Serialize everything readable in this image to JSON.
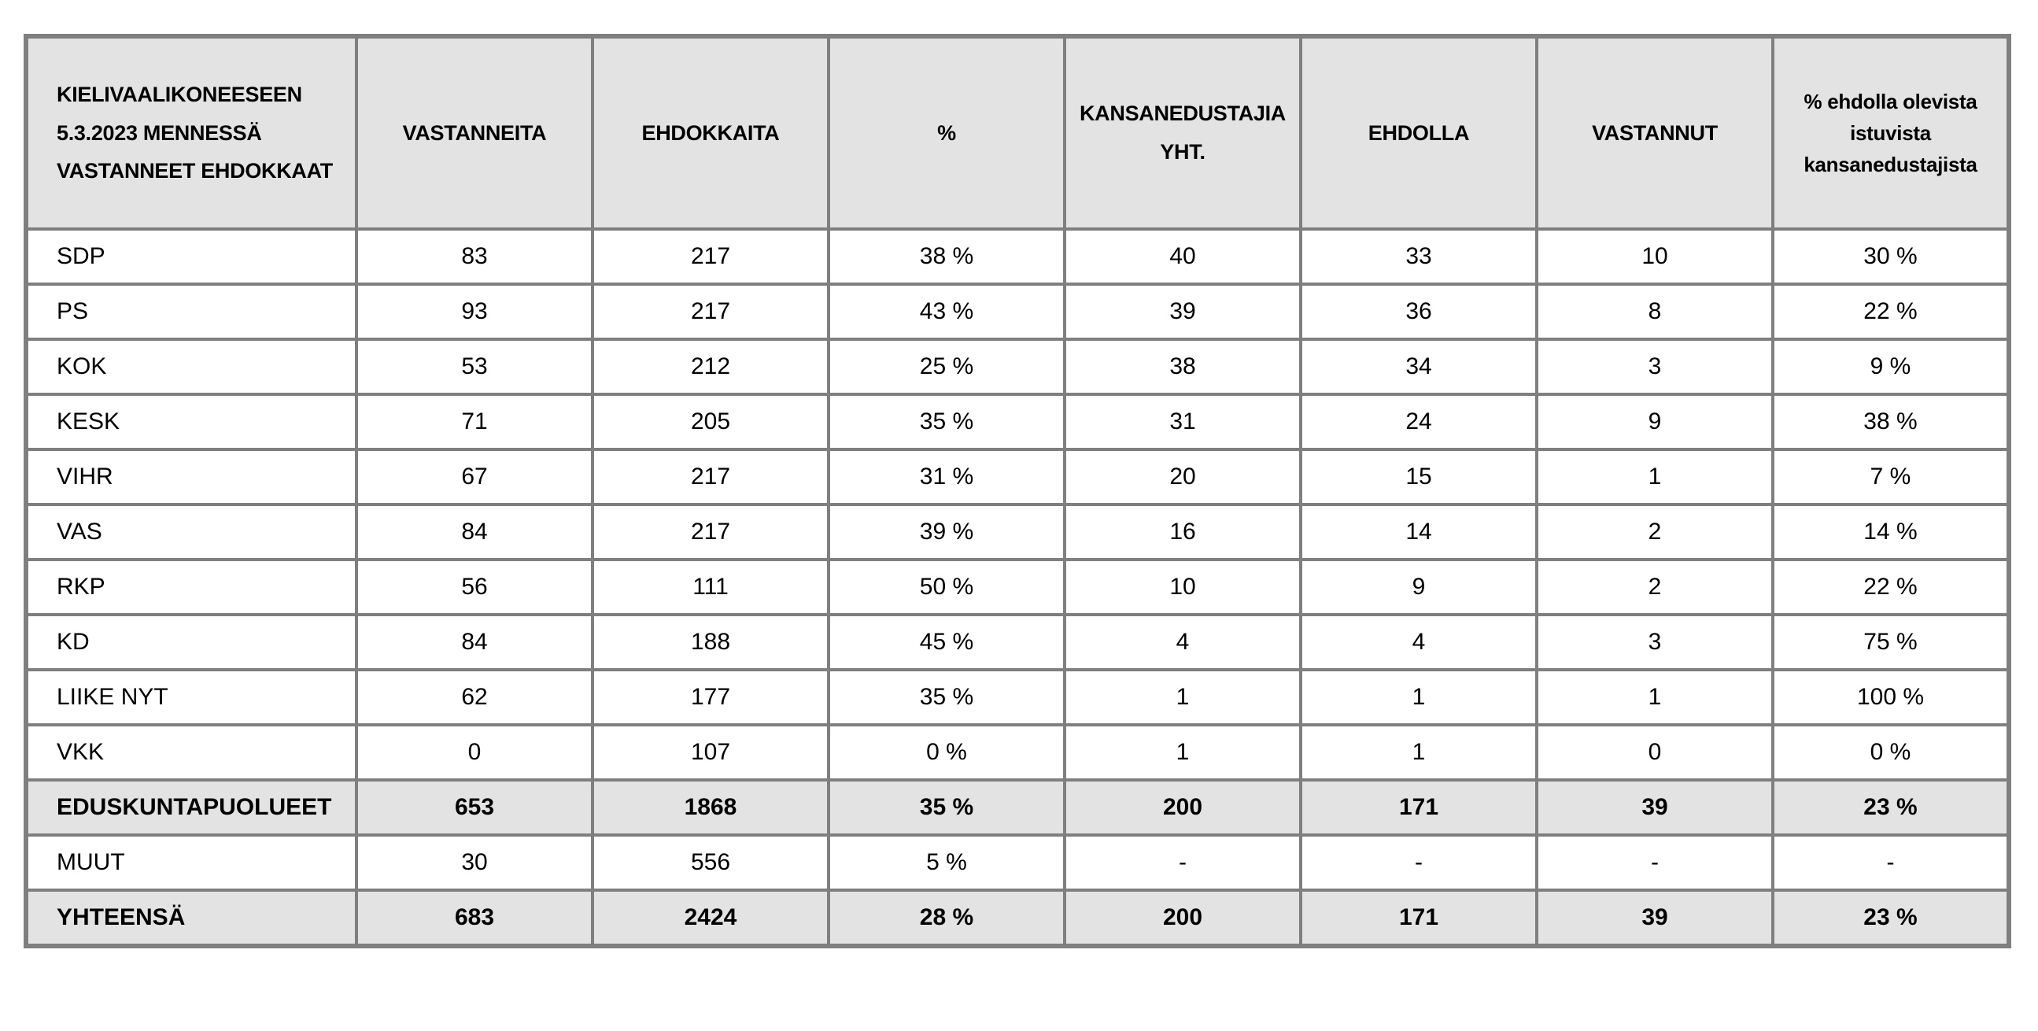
{
  "colors": {
    "border": "#7f7f7f",
    "header_bg": "#e3e3e3",
    "summary_bg": "#e3e3e3",
    "row_bg": "#ffffff",
    "text": "#000000"
  },
  "table": {
    "corner_header": "KIELIVAALIKONEESEEN\n5.3.2023 MENNESSÄ\nVASTANNEET EHDOKKAAT",
    "columns": [
      "VASTANNEITA",
      "EHDOKKAITA",
      "%",
      "KANSANEDUSTAJIA YHT.",
      "EHDOLLA",
      "VASTANNUT",
      "% ehdolla olevista istuvista kansanedustajista"
    ],
    "rows": [
      {
        "label": "SDP",
        "values": [
          "83",
          "217",
          "38 %",
          "40",
          "33",
          "10",
          "30 %"
        ],
        "emphasis": false
      },
      {
        "label": "PS",
        "values": [
          "93",
          "217",
          "43 %",
          "39",
          "36",
          "8",
          "22 %"
        ],
        "emphasis": false
      },
      {
        "label": "KOK",
        "values": [
          "53",
          "212",
          "25 %",
          "38",
          "34",
          "3",
          "9 %"
        ],
        "emphasis": false
      },
      {
        "label": "KESK",
        "values": [
          "71",
          "205",
          "35 %",
          "31",
          "24",
          "9",
          "38 %"
        ],
        "emphasis": false
      },
      {
        "label": "VIHR",
        "values": [
          "67",
          "217",
          "31 %",
          "20",
          "15",
          "1",
          "7 %"
        ],
        "emphasis": false
      },
      {
        "label": "VAS",
        "values": [
          "84",
          "217",
          "39 %",
          "16",
          "14",
          "2",
          "14 %"
        ],
        "emphasis": false
      },
      {
        "label": "RKP",
        "values": [
          "56",
          "111",
          "50 %",
          "10",
          "9",
          "2",
          "22 %"
        ],
        "emphasis": false
      },
      {
        "label": "KD",
        "values": [
          "84",
          "188",
          "45 %",
          "4",
          "4",
          "3",
          "75 %"
        ],
        "emphasis": false
      },
      {
        "label": "LIIKE NYT",
        "values": [
          "62",
          "177",
          "35 %",
          "1",
          "1",
          "1",
          "100 %"
        ],
        "emphasis": false
      },
      {
        "label": "VKK",
        "values": [
          "0",
          "107",
          "0 %",
          "1",
          "1",
          "0",
          "0 %"
        ],
        "emphasis": false
      },
      {
        "label": "EDUSKUNTAPUOLUEET",
        "values": [
          "653",
          "1868",
          "35 %",
          "200",
          "171",
          "39",
          "23 %"
        ],
        "emphasis": true
      },
      {
        "label": "MUUT",
        "values": [
          "30",
          "556",
          "5 %",
          "-",
          "-",
          "-",
          "-"
        ],
        "emphasis": false
      },
      {
        "label": "YHTEENSÄ",
        "values": [
          "683",
          "2424",
          "28 %",
          "200",
          "171",
          "39",
          "23 %"
        ],
        "emphasis": true
      }
    ]
  }
}
